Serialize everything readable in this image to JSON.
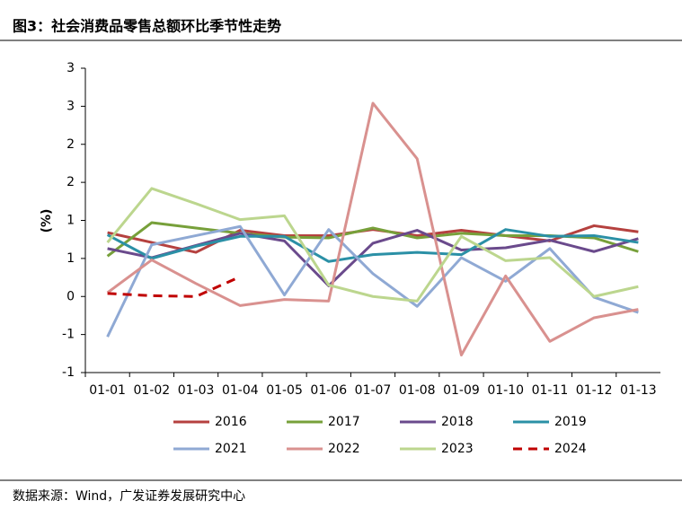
{
  "chart_data": {
    "type": "line",
    "title": "图3：社会消费品零售总额环比季节性走势",
    "y_label": "(%)",
    "source": "数据来源：Wind，广发证券发展研究中心",
    "categories": [
      "01-01",
      "01-02",
      "01-03",
      "01-04",
      "01-05",
      "01-06",
      "01-07",
      "01-08",
      "01-09",
      "01-10",
      "01-11",
      "01-12",
      "01-13"
    ],
    "ylim": [
      -1,
      3
    ],
    "yticks": [
      {
        "value": -1,
        "label": "-1"
      },
      {
        "value": -0.5,
        "label": "-1"
      },
      0,
      {
        "value": 0.5,
        "label": "1"
      },
      1,
      {
        "value": 1.5,
        "label": "2"
      },
      2,
      {
        "value": 2.5,
        "label": "3"
      },
      3
    ],
    "series": [
      {
        "name": "2016",
        "color": "#b5413f",
        "values": [
          0.84,
          0.71,
          0.58,
          0.87,
          0.8,
          0.8,
          0.88,
          0.8,
          0.87,
          0.8,
          0.73,
          0.93,
          0.85
        ]
      },
      {
        "name": "2017",
        "color": "#77a03a",
        "values": [
          0.53,
          0.97,
          0.9,
          0.83,
          0.78,
          0.77,
          0.9,
          0.77,
          0.83,
          0.8,
          0.8,
          0.77,
          0.59
        ]
      },
      {
        "name": "2018",
        "color": "#6a4a8c",
        "values": [
          0.63,
          0.51,
          0.67,
          0.83,
          0.73,
          0.14,
          0.7,
          0.87,
          0.61,
          0.64,
          0.74,
          0.59,
          0.76
        ]
      },
      {
        "name": "2019",
        "color": "#2b90a6",
        "values": [
          0.81,
          0.5,
          0.66,
          0.79,
          0.79,
          0.46,
          0.55,
          0.58,
          0.55,
          0.88,
          0.79,
          0.8,
          0.71
        ]
      },
      {
        "name": "2021",
        "color": "#8fa9d4",
        "values": [
          -0.53,
          0.68,
          0.8,
          0.92,
          0.02,
          0.88,
          0.3,
          -0.13,
          0.51,
          0.2,
          0.63,
          -0.01,
          -0.21
        ]
      },
      {
        "name": "2022",
        "color": "#d9918f",
        "values": [
          0.05,
          0.48,
          0.17,
          -0.12,
          -0.04,
          -0.06,
          2.54,
          1.81,
          -0.77,
          0.27,
          -0.59,
          -0.28,
          -0.17
        ]
      },
      {
        "name": "2023",
        "color": "#bcd68e",
        "values": [
          0.71,
          1.42,
          1.22,
          1.01,
          1.06,
          0.15,
          0.0,
          -0.06,
          0.79,
          0.47,
          0.51,
          0.0,
          0.13
        ]
      },
      {
        "name": "2024",
        "color": "#c00000",
        "dashed": true,
        "values": [
          0.04,
          0.01,
          0.0,
          0.26,
          null,
          null,
          null,
          null,
          null,
          null,
          null,
          null,
          null
        ]
      }
    ]
  }
}
